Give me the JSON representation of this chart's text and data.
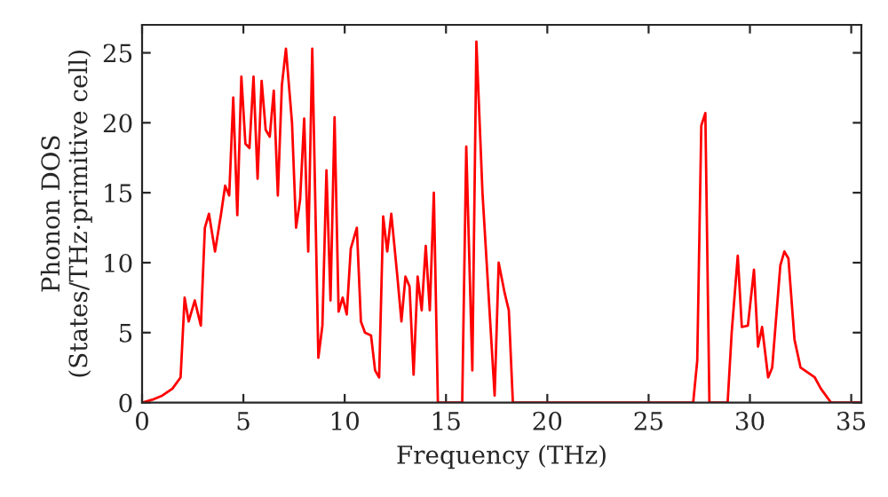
{
  "chart_data": {
    "type": "line",
    "xlabel": "Frequency (THz)",
    "ylabel": "Phonon DOS\n(States/THz·primitive cell)",
    "xlim": [
      0,
      35.5
    ],
    "ylim": [
      0,
      27
    ],
    "xticks": [
      0,
      5,
      10,
      15,
      20,
      25,
      30,
      35
    ],
    "yticks": [
      0,
      5,
      10,
      15,
      20,
      25
    ],
    "grid": false,
    "legend": false,
    "series": [
      {
        "color": "#ff0000",
        "x": [
          0,
          0.5,
          1,
          1.5,
          1.9,
          2.1,
          2.3,
          2.6,
          2.9,
          3.1,
          3.3,
          3.6,
          3.9,
          4.1,
          4.3,
          4.5,
          4.7,
          4.9,
          5.1,
          5.3,
          5.5,
          5.7,
          5.9,
          6.1,
          6.3,
          6.5,
          6.7,
          6.9,
          7.1,
          7.4,
          7.6,
          7.8,
          8.0,
          8.2,
          8.4,
          8.7,
          8.9,
          9.1,
          9.3,
          9.5,
          9.7,
          9.9,
          10.1,
          10.3,
          10.6,
          10.8,
          11.0,
          11.3,
          11.5,
          11.7,
          11.9,
          12.1,
          12.3,
          12.6,
          12.8,
          13.0,
          13.2,
          13.4,
          13.6,
          13.8,
          14.0,
          14.2,
          14.4,
          14.6,
          15.8,
          16.0,
          16.3,
          16.5,
          16.8,
          17.4,
          17.6,
          17.9,
          18.1,
          18.3,
          27.2,
          27.4,
          27.6,
          27.8,
          28.0,
          28.9,
          29.1,
          29.4,
          29.6,
          29.9,
          30.2,
          30.4,
          30.6,
          30.9,
          31.1,
          31.5,
          31.7,
          31.9,
          32.2,
          32.5,
          32.8,
          33.2,
          33.5,
          34,
          35.5
        ],
        "values": [
          0,
          0.2,
          0.5,
          1,
          1.8,
          7.5,
          5.8,
          7.3,
          5.5,
          12.5,
          13.5,
          10.8,
          13.5,
          15.5,
          14.8,
          21.8,
          13.4,
          23.3,
          18.5,
          18.2,
          23.3,
          16,
          23,
          19.5,
          19,
          22.3,
          14.8,
          22.7,
          25.3,
          20,
          12.5,
          14.5,
          20.3,
          10.8,
          25.3,
          3.2,
          5.5,
          16.6,
          7.3,
          20.4,
          6.5,
          7.5,
          6.3,
          11,
          12.5,
          5.8,
          5,
          4.8,
          2.3,
          1.8,
          13.3,
          10.8,
          13.5,
          9,
          5.8,
          9,
          8.3,
          2,
          9,
          6.6,
          11.2,
          6.6,
          15,
          0,
          0,
          18.3,
          2.3,
          25.8,
          15,
          0.5,
          10,
          7.8,
          6.6,
          0,
          0,
          3,
          19.8,
          20.7,
          0,
          0,
          5,
          10.5,
          5.4,
          5.5,
          9.5,
          4,
          5.4,
          1.8,
          2.5,
          9.8,
          10.8,
          10.3,
          4.5,
          2.5,
          2.2,
          1.8,
          1,
          0,
          0
        ]
      }
    ]
  }
}
